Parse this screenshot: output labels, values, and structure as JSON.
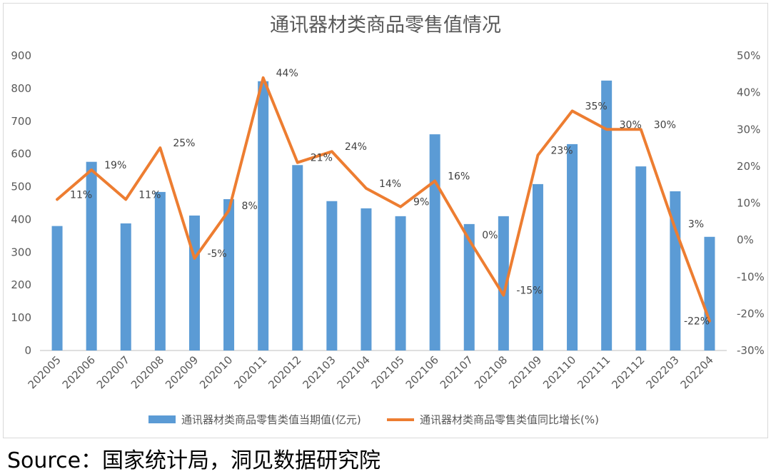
{
  "chart_data": {
    "type": "bar",
    "title": "通讯器材类商品零售值情况",
    "categories": [
      "202005",
      "202006",
      "202007",
      "202008",
      "202009",
      "202010",
      "202011",
      "202012",
      "202103",
      "202104",
      "202105",
      "202106",
      "202107",
      "202108",
      "202109",
      "202110",
      "202111",
      "202112",
      "202203",
      "202204"
    ],
    "series": [
      {
        "name": "通讯器材类商品零售类值当期值(亿元)",
        "type": "bar",
        "axis": "left",
        "color": "#5B9BD5",
        "values": [
          380,
          576,
          388,
          484,
          412,
          462,
          822,
          566,
          456,
          434,
          410,
          660,
          386,
          410,
          508,
          630,
          824,
          562,
          486,
          347
        ]
      },
      {
        "name": "通讯器材类商品零售类值同比增长(%)",
        "type": "line",
        "axis": "right",
        "color": "#ED7D31",
        "values": [
          11,
          19,
          11,
          25,
          -5,
          8,
          44,
          21,
          24,
          14,
          9,
          16,
          0,
          -15,
          23,
          35,
          30,
          30,
          3,
          -22
        ],
        "labels": [
          "11%",
          "19%",
          "11%",
          "25%",
          "-5%",
          "8%",
          "44%",
          "21%",
          "24%",
          "14%",
          "9%",
          "16%",
          "0%",
          "-15%",
          "23%",
          "35%",
          "30%",
          "30%",
          "3%",
          "-22%"
        ]
      }
    ],
    "y_left": {
      "min": 0,
      "max": 900,
      "ticks": [
        "0",
        "100",
        "200",
        "300",
        "400",
        "500",
        "600",
        "700",
        "800",
        "900"
      ]
    },
    "y_right": {
      "min": -30,
      "max": 50,
      "ticks": [
        "-30%",
        "-20%",
        "-10%",
        "0%",
        "10%",
        "20%",
        "30%",
        "40%",
        "50%"
      ]
    },
    "grid": false,
    "legend_position": "bottom"
  },
  "source": "Source：国家统计局，洞见数据研究院"
}
